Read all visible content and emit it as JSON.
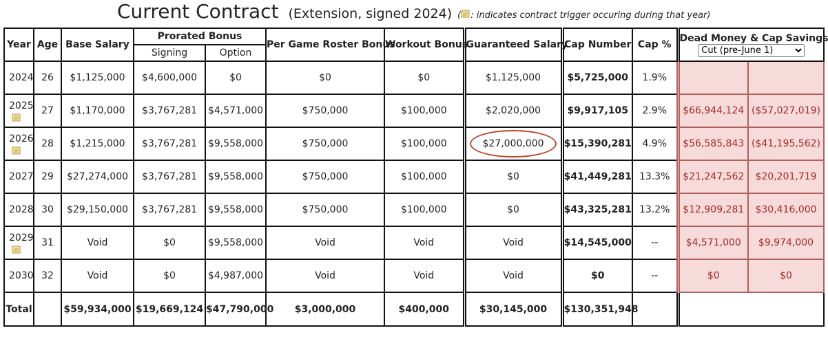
{
  "header": {
    "title": "Current Contract",
    "subtitle": "(Extension, signed 2024)",
    "note_open": "(",
    "note": ": indicates contract trigger occuring during that year)"
  },
  "table": {
    "headers": {
      "year": "Year",
      "age": "Age",
      "base": "Base Salary",
      "prorated": "Prorated Bonus",
      "signing": "Signing",
      "option": "Option",
      "roster": "Per Game Roster Bonus",
      "workout": "Workout Bonus",
      "guaranteed": "Guaranteed Salary",
      "cap": "Cap Number",
      "cap_pct": "Cap %",
      "dead": "Dead Money & Cap Savings",
      "cut_option": "Cut (pre-June 1)"
    },
    "rows": [
      {
        "year": "2024",
        "age": "26",
        "cells": [
          "$1,125,000",
          "$4,600,000",
          "$0",
          "$0",
          "$0",
          "$1,125,000",
          "$5,725,000",
          "1.9%"
        ],
        "trigger": false
      },
      {
        "year": "2025",
        "age": "27",
        "cells": [
          "$1,170,000",
          "$3,767,281",
          "$4,571,000",
          "$750,000",
          "$100,000",
          "$2,020,000",
          "$9,917,105",
          "2.9%"
        ],
        "dead": "$66,944,124",
        "savings": "($57,027,019)",
        "trigger": true
      },
      {
        "year": "2026",
        "age": "28",
        "cells": [
          "$1,215,000",
          "$3,767,281",
          "$9,558,000",
          "$750,000",
          "$100,000",
          "$27,000,000",
          "$15,390,281",
          "4.9%"
        ],
        "dead": "$56,585,843",
        "savings": "($41,195,562)",
        "trigger": true,
        "circled": true
      },
      {
        "year": "2027",
        "age": "29",
        "cells": [
          "$27,274,000",
          "$3,767,281",
          "$9,558,000",
          "$750,000",
          "$100,000",
          "$0",
          "$41,449,281",
          "13.3%"
        ],
        "dead": "$21,247,562",
        "savings": "$20,201,719",
        "trigger": false
      },
      {
        "year": "2028",
        "age": "30",
        "cells": [
          "$29,150,000",
          "$3,767,281",
          "$9,558,000",
          "$750,000",
          "$100,000",
          "$0",
          "$43,325,281",
          "13.2%"
        ],
        "dead": "$12,909,281",
        "savings": "$30,416,000",
        "trigger": false
      },
      {
        "year": "2029",
        "age": "31",
        "cells": [
          "Void",
          "$0",
          "$9,558,000",
          "Void",
          "Void",
          "Void",
          "$14,545,000",
          "--"
        ],
        "dead": "$4,571,000",
        "savings": "$9,974,000",
        "trigger": true
      },
      {
        "year": "2030",
        "age": "32",
        "cells": [
          "Void",
          "$0",
          "$4,987,000",
          "Void",
          "Void",
          "Void",
          "$0",
          "--"
        ],
        "dead": "$0",
        "savings": "$0",
        "trigger": false
      }
    ],
    "total": {
      "label": "Total",
      "cells": [
        "$59,934,000",
        "$19,669,124",
        "$47,790,000",
        "$3,000,000",
        "$400,000",
        "$30,145,000",
        "$130,351,948"
      ]
    }
  }
}
